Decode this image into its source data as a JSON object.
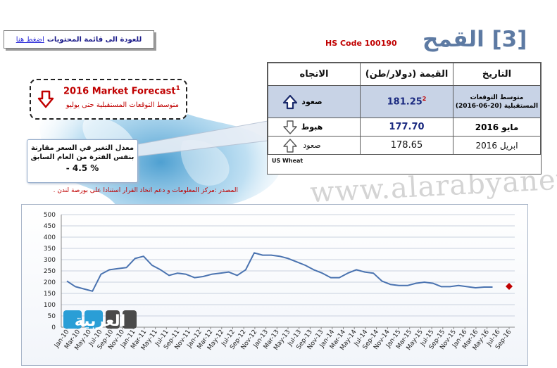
{
  "header": {
    "back_prefix": "للعودة الى قائمة المحتويات",
    "back_link": "اضغط هنا",
    "hs_code": "HS Code 100190",
    "title": "[3] القمح"
  },
  "forecast": {
    "title": "2016 Market Forecast",
    "title_sup": "1",
    "subtitle": "متوسط التوقعات المستقبلية حتى يوليو",
    "icon": "down-arrow-icon"
  },
  "change": {
    "label_line1": "معدل التغير في السعر مقارنة",
    "label_line2": "بنفس الفترة من العام السابق",
    "value": "- 4.5 %"
  },
  "source": "المصدر :مركز المعلومات و دعم اتخاذ القرار  استنادا على  بورصة لندن .",
  "table": {
    "headers": {
      "date": "التاريخ",
      "value": "القيمة (دولار/طن)",
      "direction": "الاتجاه"
    },
    "rows": [
      {
        "date": "متوسط التوقعات المستقبلية (20-06-2016)",
        "value": "181.25",
        "value_sup": "2",
        "direction": "صعود",
        "icon": "up-arrow-icon"
      },
      {
        "date": "مايو 2016",
        "value": "177.70",
        "value_sup": "",
        "direction": "هبوط",
        "icon": "down-arrow-icon"
      },
      {
        "date": "ابريل 2016",
        "value": "178.65",
        "value_sup": "",
        "direction": "صعود",
        "icon": "up-arrow-icon"
      }
    ],
    "footnote": "US Wheat"
  },
  "watermark": "www.alarabyanews.com",
  "logo": {
    "text": "العربية"
  },
  "colors": {
    "accent_red": "#c00000",
    "title_blue": "#5d7aa3",
    "line_blue": "#4a73b0",
    "forecast_marker": "#c00000"
  },
  "chart_data": {
    "type": "line",
    "title": "",
    "xlabel": "",
    "ylabel": "",
    "ylim": [
      0,
      500
    ],
    "yticks": [
      0,
      50,
      100,
      150,
      200,
      250,
      300,
      350,
      400,
      450,
      500
    ],
    "x_tick_labels": [
      "Jan-10",
      "Mar-10",
      "May-10",
      "Jul-10",
      "Sep-10",
      "Nov-10",
      "Jan-11",
      "Mar-11",
      "May-11",
      "Jul-11",
      "Sep-11",
      "Nov-11",
      "Jan-12",
      "Mar-12",
      "May-12",
      "Jul-12",
      "Sep-12",
      "Nov-12",
      "Jan-13",
      "Mar-13",
      "May-13",
      "Jul-13",
      "Sep-13",
      "Nov-13",
      "Jan-14",
      "Mar-14",
      "May-14",
      "Jul-14",
      "Sep-14",
      "Nov-14",
      "Jan-15",
      "Mar-15",
      "May-15",
      "Jul-15",
      "Sep-15",
      "Nov-15",
      "Jan-16",
      "Mar-16",
      "May-16",
      "Jul-16",
      "Sep-16"
    ],
    "series": [
      {
        "values": [
          205,
          180,
          170,
          160,
          235,
          255,
          260,
          265,
          305,
          315,
          275,
          255,
          230,
          240,
          235,
          220,
          225,
          235,
          240,
          245,
          230,
          255,
          330,
          320,
          320,
          315,
          305,
          290,
          275,
          255,
          240,
          220,
          220,
          240,
          255,
          245,
          240,
          205,
          190,
          185,
          185,
          195,
          200,
          195,
          180,
          180,
          185,
          180,
          175,
          178,
          178
        ]
      },
      {
        "values": [
          181.25
        ],
        "point_index": 52,
        "marker": "diamond"
      }
    ]
  }
}
